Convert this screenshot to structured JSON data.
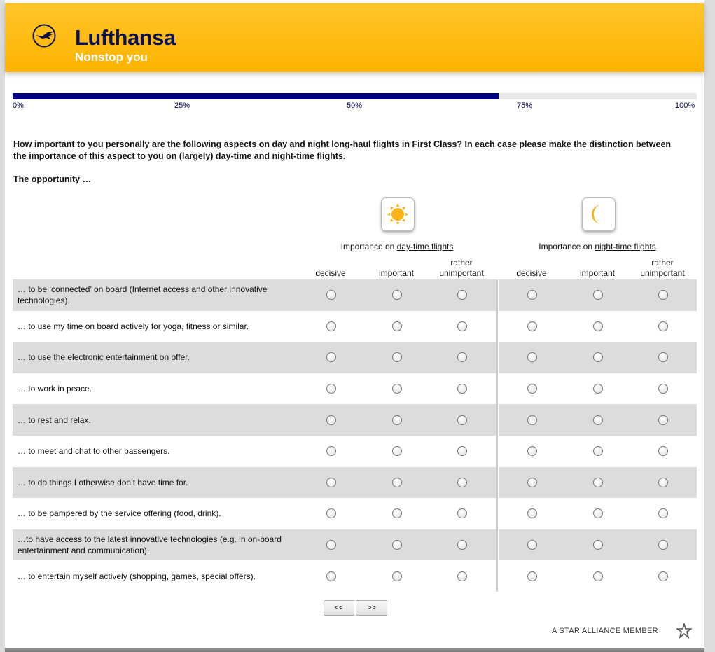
{
  "header": {
    "brand": "Lufthansa",
    "slogan": "Nonstop you",
    "logo_icon": "crane-icon",
    "color": "#ffb300"
  },
  "progress": {
    "percent": 71,
    "labels": [
      "0%",
      "25%",
      "50%",
      "75%",
      "100%"
    ],
    "color": "#000080"
  },
  "question": {
    "part1": "How important to you personally are the following aspects on day and night ",
    "link": "long-haul flights ",
    "part2": "in First Class? In each case please make the distinction between the importance of this aspect to you on (largely) day-time and night-time flights."
  },
  "intro": "The opportunity …",
  "groups": [
    {
      "icon": "sun-icon",
      "prefix": "Importance on ",
      "link": "day-time flights"
    },
    {
      "icon": "moon-icon",
      "prefix": "Importance on ",
      "link": "night-time flights"
    }
  ],
  "columns": [
    "decisive",
    "important",
    "rather unimportant"
  ],
  "rows": [
    "… to be ‘connected’ on board (Internet access and other innovative technologies).",
    "… to use my time on board actively for yoga, fitness or similar.",
    "… to use the electronic entertainment on offer.",
    "… to work in peace.",
    "… to rest and relax.",
    "… to meet and chat to other passengers.",
    "… to do things I otherwise don’t have time for.",
    "… to be pampered by the service offering (food, drink).",
    "…to have access to the latest innovative technologies (e.g. in on-board entertainment and communication).",
    "… to entertain myself actively (shopping, games, special offers)."
  ],
  "nav": {
    "back": "<<",
    "next": ">>"
  },
  "footer": {
    "text": "A STAR ALLIANCE MEMBER",
    "icon": "star-alliance-icon"
  }
}
